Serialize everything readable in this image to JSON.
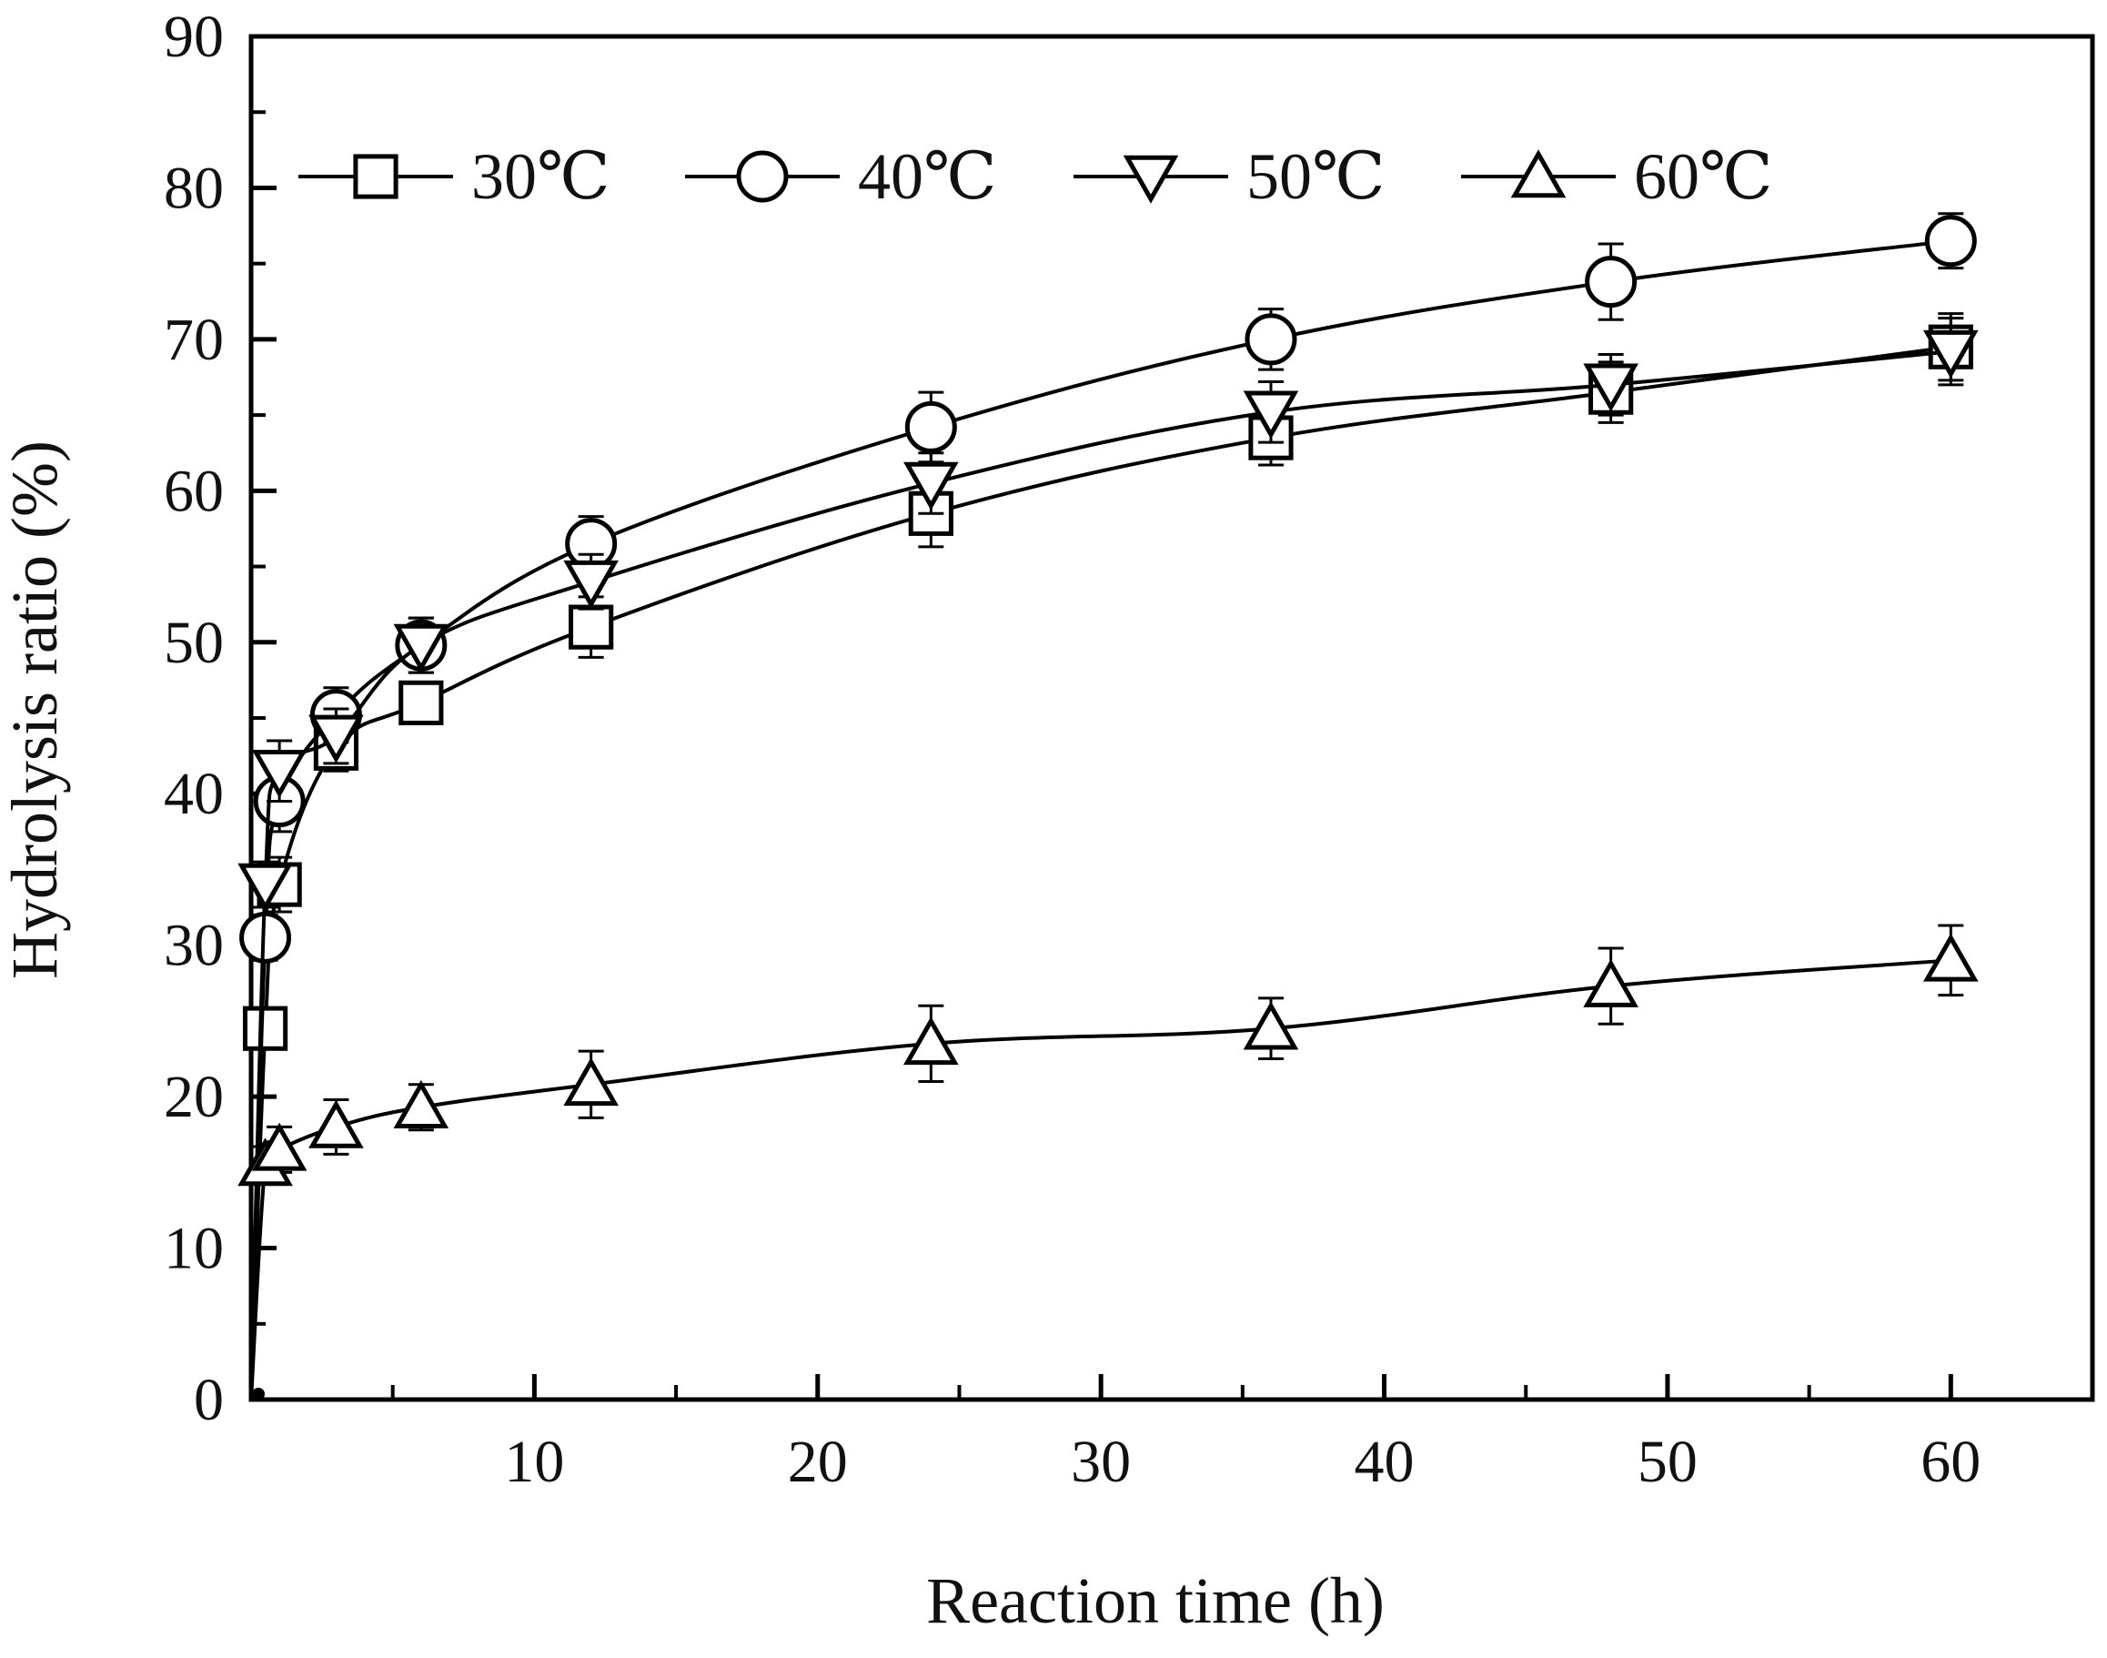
{
  "chart_data": {
    "type": "line",
    "title": "",
    "xlabel": "Reaction time (h)",
    "ylabel": "Hydrolysis ratio (%)",
    "xlim": [
      0,
      65
    ],
    "ylim": [
      0,
      90
    ],
    "x_ticks": [
      10,
      20,
      30,
      40,
      50,
      60
    ],
    "x_minor_ticks": [
      5,
      15,
      25,
      35,
      45,
      55,
      65
    ],
    "y_ticks": [
      0,
      10,
      20,
      30,
      40,
      50,
      60,
      70,
      80,
      90
    ],
    "y_minor_ticks": [
      5,
      15,
      25,
      35,
      45,
      55,
      65,
      75,
      85
    ],
    "x_tick_labels": [
      "10",
      "20",
      "30",
      "40",
      "50",
      "60"
    ],
    "y_tick_labels": [
      "0",
      "10",
      "20",
      "30",
      "40",
      "50",
      "60",
      "70",
      "80",
      "90"
    ],
    "grid": false,
    "legend_position": "top",
    "series": [
      {
        "name": "30℃",
        "marker": "square",
        "x": [
          0,
          0.5,
          1,
          3,
          6,
          12,
          24,
          36,
          48,
          60
        ],
        "values": [
          0,
          24.5,
          34,
          43,
          46,
          51,
          58.5,
          63.5,
          66.5,
          69.5
        ],
        "errors": [
          0,
          1.2,
          1.8,
          1.5,
          1.3,
          2.0,
          2.2,
          1.8,
          2.0,
          2.2
        ]
      },
      {
        "name": "40℃",
        "marker": "circle",
        "x": [
          0,
          0.5,
          1,
          3,
          6,
          12,
          24,
          36,
          48,
          60
        ],
        "values": [
          0,
          30.5,
          39.5,
          45.2,
          49.8,
          56.5,
          64.2,
          70,
          73.8,
          76.5
        ],
        "errors": [
          0,
          1.5,
          2.0,
          1.8,
          1.8,
          1.8,
          2.3,
          2.0,
          2.5,
          1.8
        ]
      },
      {
        "name": "50℃",
        "marker": "triangle-down",
        "x": [
          0,
          0.5,
          1,
          3,
          6,
          12,
          24,
          36,
          48,
          60
        ],
        "values": [
          0,
          34,
          41.5,
          43.8,
          49.8,
          54,
          60.5,
          65.2,
          67,
          69.2
        ],
        "errors": [
          0,
          1.5,
          2.0,
          1.8,
          1.8,
          1.8,
          2.0,
          2.0,
          2.0,
          2.2
        ]
      },
      {
        "name": "60℃",
        "marker": "triangle-up",
        "x": [
          0,
          0.5,
          1,
          3,
          6,
          12,
          24,
          36,
          48,
          60
        ],
        "values": [
          0,
          15.5,
          16.5,
          18,
          19.3,
          20.8,
          23.5,
          24.5,
          27.3,
          29
        ],
        "errors": [
          0,
          1.2,
          1.5,
          1.8,
          1.5,
          2.2,
          2.5,
          2.0,
          2.5,
          2.3
        ]
      }
    ]
  }
}
